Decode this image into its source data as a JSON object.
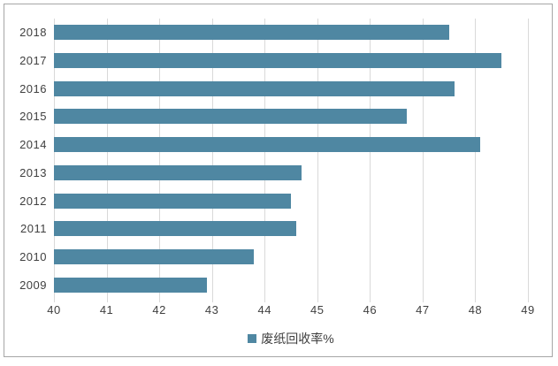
{
  "chart_data": {
    "type": "bar",
    "orientation": "horizontal",
    "title": "",
    "categories": [
      "2018",
      "2017",
      "2016",
      "2015",
      "2014",
      "2013",
      "2012",
      "2011",
      "2010",
      "2009"
    ],
    "values": [
      47.5,
      48.5,
      47.6,
      46.7,
      48.1,
      44.7,
      44.5,
      44.6,
      43.8,
      42.9
    ],
    "series_name": "废纸回收率%",
    "xlabel": "",
    "ylabel": "",
    "xlim": [
      40,
      49
    ],
    "xticks": [
      40,
      41,
      42,
      43,
      44,
      45,
      46,
      47,
      48,
      49
    ],
    "grid": true,
    "legend": {
      "position": "bottom",
      "label": "废纸回收率%"
    },
    "colors": {
      "bar": "#4f87a2",
      "gridline": "#d9d9d9",
      "text": "#404040",
      "frame_border": "#a6a6a6",
      "background": "#ffffff"
    }
  }
}
